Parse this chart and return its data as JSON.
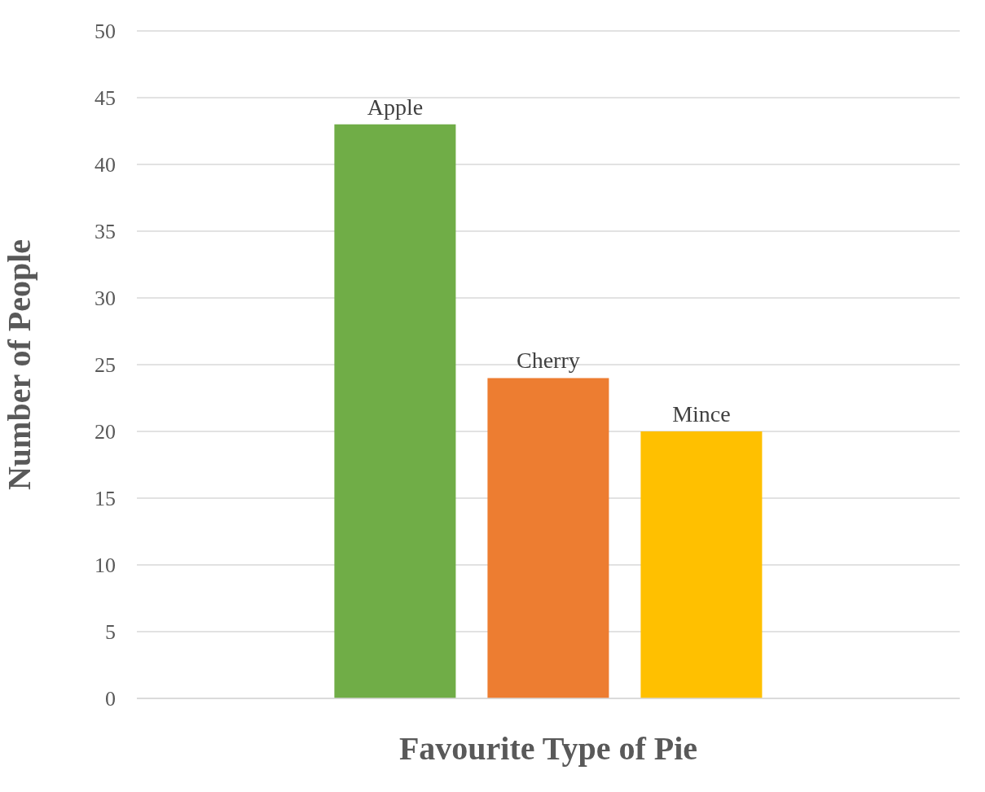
{
  "chart_data": {
    "type": "bar",
    "categories": [
      null
    ],
    "xlabel": "Favourite Type of Pie",
    "ylabel": "Number of People",
    "ylim": [
      0,
      50
    ],
    "yticks": [
      0,
      5,
      10,
      15,
      20,
      25,
      30,
      35,
      40,
      45,
      50
    ],
    "grid": "y",
    "series": [
      {
        "name": "Apple",
        "color": "#70ad47",
        "values": [
          43
        ]
      },
      {
        "name": "Cherry",
        "color": "#ed7d31",
        "values": [
          24
        ]
      },
      {
        "name": "Mince",
        "color": "#ffc000",
        "values": [
          20
        ]
      }
    ]
  }
}
